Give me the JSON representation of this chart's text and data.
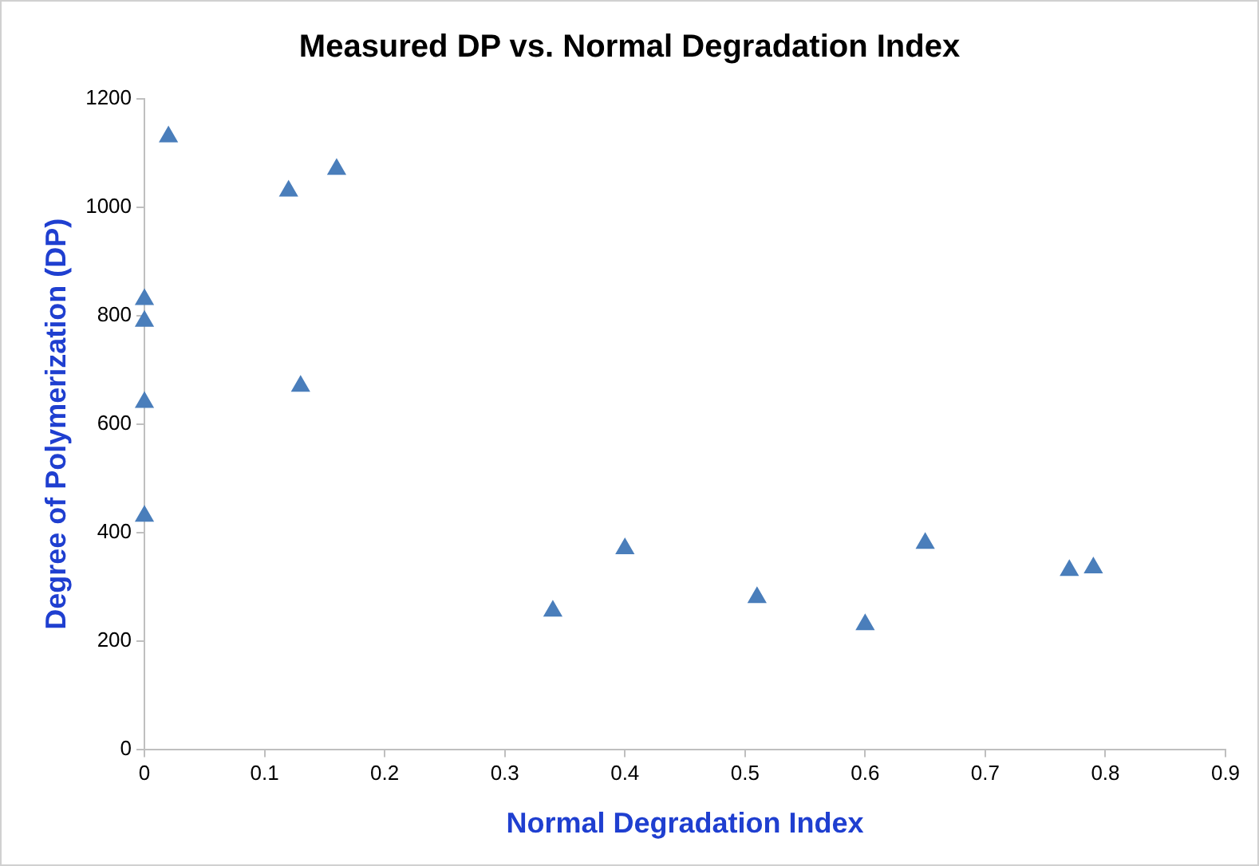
{
  "chart_data": {
    "type": "scatter",
    "title": "Measured DP vs. Normal Degradation Index",
    "xlabel": "Normal Degradation Index",
    "ylabel": "Degree of Polymerization (DP)",
    "series": [
      {
        "color": "#4a7ebb",
        "x": [
          0,
          0,
          0,
          0,
          0.02,
          0.12,
          0.13,
          0.16,
          0.34,
          0.4,
          0.51,
          0.6,
          0.65,
          0.77,
          0.79
        ],
        "values": [
          830,
          790,
          640,
          430,
          1130,
          1030,
          670,
          1070,
          255,
          370,
          280,
          230,
          380,
          330,
          335
        ]
      }
    ],
    "xlim": [
      0,
      0.9
    ],
    "xticks": [
      0,
      0.1,
      0.2,
      0.3,
      0.4,
      0.5,
      0.6,
      0.7,
      0.8,
      0.9
    ],
    "ylim": [
      0,
      1200
    ],
    "yticks": [
      0,
      200,
      400,
      600,
      800,
      1000,
      1200
    ],
    "grid": false,
    "legend": false,
    "marker": "triangle"
  }
}
